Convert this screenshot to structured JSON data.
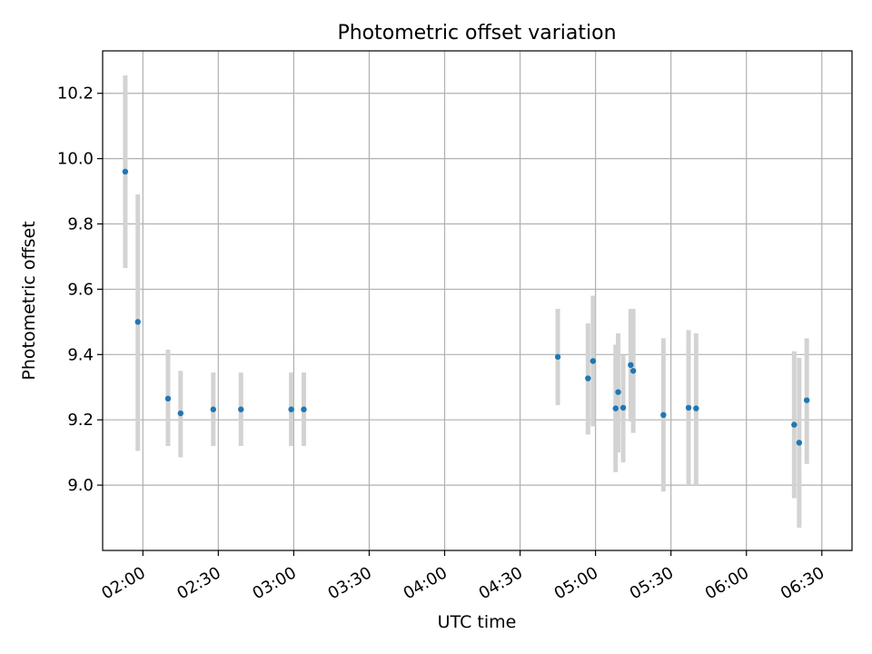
{
  "chart_data": {
    "type": "scatter",
    "title": "Photometric offset variation",
    "xlabel": "UTC time",
    "ylabel": "Photometric offset",
    "xlim": [
      "01:44",
      "06:42"
    ],
    "ylim": [
      8.8,
      10.33
    ],
    "x_ticks": [
      "02:00",
      "02:30",
      "03:00",
      "03:30",
      "04:00",
      "04:30",
      "05:00",
      "05:30",
      "06:00",
      "06:30"
    ],
    "y_ticks": [
      9.0,
      9.2,
      9.4,
      9.6,
      9.8,
      10.0,
      10.2
    ],
    "grid": true,
    "series": [
      {
        "marker_color": "#1f77b4",
        "errorbar_color": "#d3d3d3",
        "points": [
          {
            "x": "01:53",
            "y": 9.96,
            "lo": 9.665,
            "hi": 10.255
          },
          {
            "x": "01:58",
            "y": 9.5,
            "lo": 9.105,
            "hi": 9.89
          },
          {
            "x": "02:10",
            "y": 9.265,
            "lo": 9.12,
            "hi": 9.415
          },
          {
            "x": "02:15",
            "y": 9.22,
            "lo": 9.085,
            "hi": 9.35
          },
          {
            "x": "02:28",
            "y": 9.232,
            "lo": 9.12,
            "hi": 9.345
          },
          {
            "x": "02:39",
            "y": 9.232,
            "lo": 9.12,
            "hi": 9.345
          },
          {
            "x": "02:59",
            "y": 9.232,
            "lo": 9.12,
            "hi": 9.345
          },
          {
            "x": "03:04",
            "y": 9.232,
            "lo": 9.12,
            "hi": 9.345
          },
          {
            "x": "04:45",
            "y": 9.393,
            "lo": 9.245,
            "hi": 9.54
          },
          {
            "x": "04:57",
            "y": 9.327,
            "lo": 9.155,
            "hi": 9.495
          },
          {
            "x": "04:59",
            "y": 9.38,
            "lo": 9.18,
            "hi": 9.58
          },
          {
            "x": "05:08",
            "y": 9.235,
            "lo": 9.04,
            "hi": 9.43
          },
          {
            "x": "05:09",
            "y": 9.285,
            "lo": 9.1,
            "hi": 9.465
          },
          {
            "x": "05:11",
            "y": 9.237,
            "lo": 9.07,
            "hi": 9.4
          },
          {
            "x": "05:14",
            "y": 9.368,
            "lo": 9.195,
            "hi": 9.54
          },
          {
            "x": "05:15",
            "y": 9.35,
            "lo": 9.16,
            "hi": 9.54
          },
          {
            "x": "05:27",
            "y": 9.215,
            "lo": 8.98,
            "hi": 9.45
          },
          {
            "x": "05:37",
            "y": 9.237,
            "lo": 9.0,
            "hi": 9.475
          },
          {
            "x": "05:40",
            "y": 9.235,
            "lo": 9.0,
            "hi": 9.465
          },
          {
            "x": "06:19",
            "y": 9.185,
            "lo": 8.96,
            "hi": 9.41
          },
          {
            "x": "06:21",
            "y": 9.13,
            "lo": 8.87,
            "hi": 9.39
          },
          {
            "x": "06:24",
            "y": 9.26,
            "lo": 9.065,
            "hi": 9.45
          }
        ]
      }
    ]
  }
}
